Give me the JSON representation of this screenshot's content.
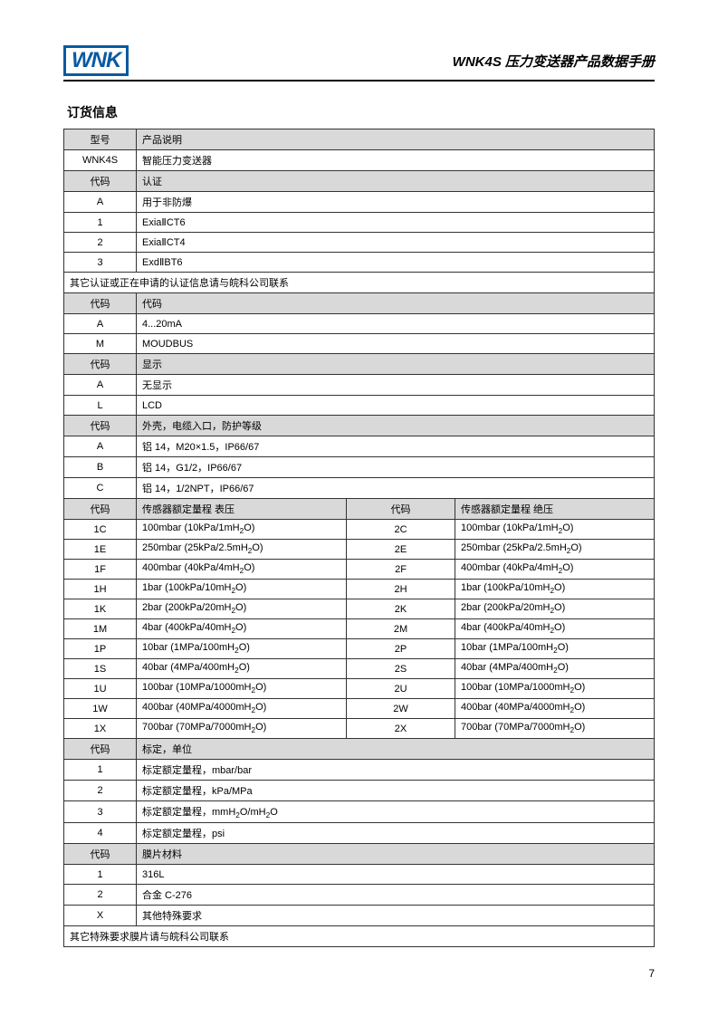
{
  "header": {
    "logo": "WNK",
    "title": "WNK4S 压力变送器产品数据手册"
  },
  "section_title": "订货信息",
  "page_number": "7",
  "rows": [
    {
      "type": "hdr2",
      "c1": "型号",
      "c2": "产品说明"
    },
    {
      "type": "row2",
      "c1": "WNK4S",
      "c2": "智能压力变送器"
    },
    {
      "type": "hdr2",
      "c1": "代码",
      "c2": "认证"
    },
    {
      "type": "row2",
      "c1": "A",
      "c2": "用于非防爆"
    },
    {
      "type": "row2",
      "c1": "1",
      "c2": "ExiaⅡCT6"
    },
    {
      "type": "row2",
      "c1": "2",
      "c2": "ExiaⅡCT4"
    },
    {
      "type": "row2",
      "c1": "3",
      "c2": "ExdⅡBT6"
    },
    {
      "type": "full",
      "text": "其它认证或正在申请的认证信息请与皖科公司联系"
    },
    {
      "type": "hdr2",
      "c1": "代码",
      "c2": "代码"
    },
    {
      "type": "row2",
      "c1": "A",
      "c2": "4...20mA"
    },
    {
      "type": "row2",
      "c1": "M",
      "c2": "MOUDBUS"
    },
    {
      "type": "hdr2",
      "c1": "代码",
      "c2": "显示"
    },
    {
      "type": "row2",
      "c1": "A",
      "c2": "无显示"
    },
    {
      "type": "row2",
      "c1": "L",
      "c2": "LCD"
    },
    {
      "type": "hdr2",
      "c1": "代码",
      "c2": "外壳，电缆入口，防护等级"
    },
    {
      "type": "row2",
      "c1": "A",
      "c2": "铝 14，M20×1.5，IP66/67"
    },
    {
      "type": "row2",
      "c1": "B",
      "c2": "铝 14，G1/2，IP66/67"
    },
    {
      "type": "row2",
      "c1": "C",
      "c2": "铝 14，1/2NPT，IP66/67"
    },
    {
      "type": "hdr4",
      "c1": "代码",
      "c2": "传感器额定量程 表压",
      "c3": "代码",
      "c4": "传感器额定量程 绝压"
    },
    {
      "type": "row4",
      "c1": "1C",
      "c2": "100mbar (10kPa/1mH₂O)",
      "c3": "2C",
      "c4": "100mbar (10kPa/1mH₂O)"
    },
    {
      "type": "row4",
      "c1": "1E",
      "c2": "250mbar (25kPa/2.5mH₂O)",
      "c3": "2E",
      "c4": "250mbar (25kPa/2.5mH₂O)"
    },
    {
      "type": "row4",
      "c1": "1F",
      "c2": "400mbar (40kPa/4mH₂O)",
      "c3": "2F",
      "c4": "400mbar (40kPa/4mH₂O)"
    },
    {
      "type": "row4",
      "c1": "1H",
      "c2": "1bar (100kPa/10mH₂O)",
      "c3": "2H",
      "c4": "1bar (100kPa/10mH₂O)"
    },
    {
      "type": "row4",
      "c1": "1K",
      "c2": "2bar (200kPa/20mH₂O)",
      "c3": "2K",
      "c4": "2bar (200kPa/20mH₂O)"
    },
    {
      "type": "row4",
      "c1": "1M",
      "c2": "4bar (400kPa/40mH₂O)",
      "c3": "2M",
      "c4": "4bar (400kPa/40mH₂O)"
    },
    {
      "type": "row4",
      "c1": "1P",
      "c2": "10bar (1MPa/100mH₂O)",
      "c3": "2P",
      "c4": "10bar (1MPa/100mH₂O)"
    },
    {
      "type": "row4",
      "c1": "1S",
      "c2": "40bar (4MPa/400mH₂O)",
      "c3": "2S",
      "c4": "40bar (4MPa/400mH₂O)"
    },
    {
      "type": "row4",
      "c1": "1U",
      "c2": "100bar (10MPa/1000mH₂O)",
      "c3": "2U",
      "c4": "100bar (10MPa/1000mH₂O)"
    },
    {
      "type": "row4",
      "c1": "1W",
      "c2": "400bar (40MPa/4000mH₂O)",
      "c3": "2W",
      "c4": "400bar (40MPa/4000mH₂O)"
    },
    {
      "type": "row4",
      "c1": "1X",
      "c2": "700bar (70MPa/7000mH₂O)",
      "c3": "2X",
      "c4": "700bar (70MPa/7000mH₂O)"
    },
    {
      "type": "hdr2",
      "c1": "代码",
      "c2": "标定，单位"
    },
    {
      "type": "row2",
      "c1": "1",
      "c2": "标定额定量程，mbar/bar"
    },
    {
      "type": "row2",
      "c1": "2",
      "c2": "标定额定量程，kPa/MPa"
    },
    {
      "type": "row2",
      "c1": "3",
      "c2": "标定额定量程，mmH₂O/mH₂O"
    },
    {
      "type": "row2",
      "c1": "4",
      "c2": "标定额定量程，psi"
    },
    {
      "type": "hdr2",
      "c1": "代码",
      "c2": "膜片材料"
    },
    {
      "type": "row2",
      "c1": "1",
      "c2": "316L"
    },
    {
      "type": "row2",
      "c1": "2",
      "c2": "合金 C-276"
    },
    {
      "type": "row2",
      "c1": "X",
      "c2": "其他特殊要求"
    },
    {
      "type": "full",
      "text": "其它特殊要求膜片请与皖科公司联系"
    }
  ]
}
